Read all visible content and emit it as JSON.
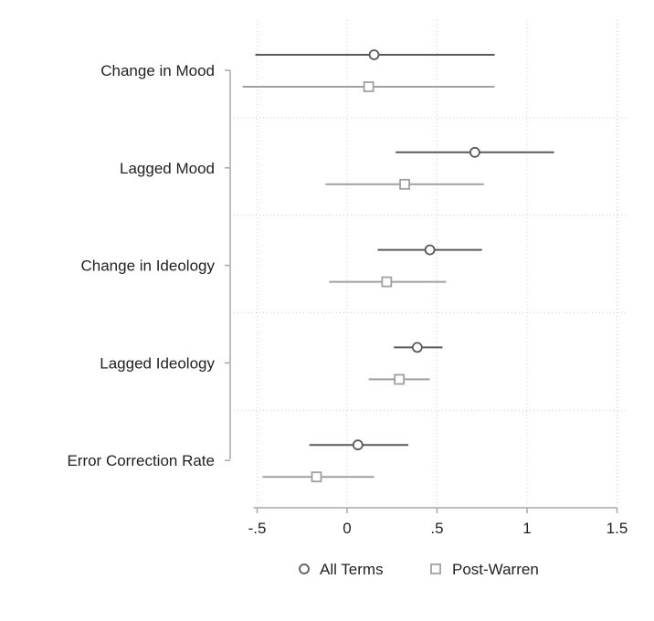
{
  "chart_data": {
    "type": "coefficient_plot",
    "orientation": "horizontal",
    "title": "",
    "xlabel": "",
    "ylabel": "",
    "xlim": [
      -0.55,
      1.5
    ],
    "x_ticks": [
      -0.5,
      0,
      0.5,
      1,
      1.5
    ],
    "x_tick_labels": [
      "-.5",
      "0",
      ".5",
      "1",
      "1.5"
    ],
    "grid": true,
    "legend_position": "bottom",
    "categories": [
      "Change in Mood",
      "Lagged Mood",
      "Change in Ideology",
      "Lagged Ideology",
      "Error Correction Rate"
    ],
    "series": [
      {
        "name": "All Terms",
        "marker": "circle",
        "color": "#5a5a5a",
        "estimates": [
          0.15,
          0.71,
          0.46,
          0.39,
          0.06
        ],
        "lower": [
          -0.51,
          0.27,
          0.17,
          0.26,
          -0.21
        ],
        "upper": [
          0.82,
          1.15,
          0.75,
          0.53,
          0.34
        ]
      },
      {
        "name": "Post-Warren",
        "marker": "square",
        "color": "#a0a0a0",
        "estimates": [
          0.12,
          0.32,
          0.22,
          0.29,
          -0.17
        ],
        "lower": [
          -0.58,
          -0.12,
          -0.1,
          0.12,
          -0.47
        ],
        "upper": [
          0.82,
          0.76,
          0.55,
          0.46,
          0.15
        ]
      }
    ]
  }
}
